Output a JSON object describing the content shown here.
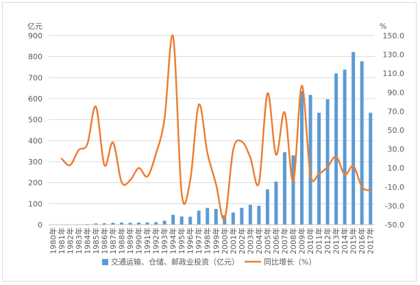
{
  "chart_data": {
    "type": "bar",
    "left_axis_unit": "亿元",
    "right_axis_unit": "%",
    "categories": [
      "1980年",
      "1981年",
      "1982年",
      "1983年",
      "1984年",
      "1985年",
      "1986年",
      "1987年",
      "1988年",
      "1989年",
      "1990年",
      "1991年",
      "1992年",
      "1993年",
      "1994年",
      "1995年",
      "1996年",
      "1997年",
      "1998年",
      "1999年",
      "2000年",
      "2001年",
      "2002年",
      "2003年",
      "2004年",
      "2005年",
      "2006年",
      "2007年",
      "2008年",
      "2009年",
      "2010年",
      "2011年",
      "2012年",
      "2013年",
      "2014年",
      "2015年",
      "2016年",
      "2017年"
    ],
    "y_left_ticks": [
      "0",
      "100",
      "200",
      "300",
      "400",
      "500",
      "600",
      "700",
      "800",
      "900"
    ],
    "y_right_ticks": [
      "-50.0",
      "-30.0",
      "-10.0",
      "10.0",
      "30.0",
      "50.0",
      "70.0",
      "90.0",
      "110.0",
      "130.0",
      "150.0"
    ],
    "ylim_left": [
      0,
      900
    ],
    "ylim_right": [
      -50,
      150
    ],
    "series": [
      {
        "name": "交通运输、仓储、邮政业投资（亿元）",
        "kind": "bar",
        "axis": "left",
        "color": "#5b9bd5",
        "values": [
          null,
          1,
          1,
          2,
          3,
          6,
          7,
          9,
          10,
          9,
          10,
          11,
          12,
          19,
          47,
          39,
          38,
          67,
          80,
          75,
          45,
          58,
          80,
          95,
          90,
          168,
          205,
          345,
          330,
          635,
          618,
          533,
          597,
          720,
          738,
          822,
          778,
          533
        ]
      },
      {
        "name": "同比增长（%）",
        "kind": "line",
        "axis": "right",
        "color": "#ed7d31",
        "values": [
          null,
          20,
          13,
          29,
          35,
          75,
          13,
          37,
          -5,
          -3,
          10,
          1,
          25,
          62,
          149,
          -17,
          -3,
          77,
          26,
          -7,
          -44,
          29,
          38,
          21,
          -6,
          89,
          24,
          69,
          -4,
          97,
          3,
          4,
          11,
          22,
          3,
          12,
          -10,
          -14
        ]
      }
    ]
  }
}
